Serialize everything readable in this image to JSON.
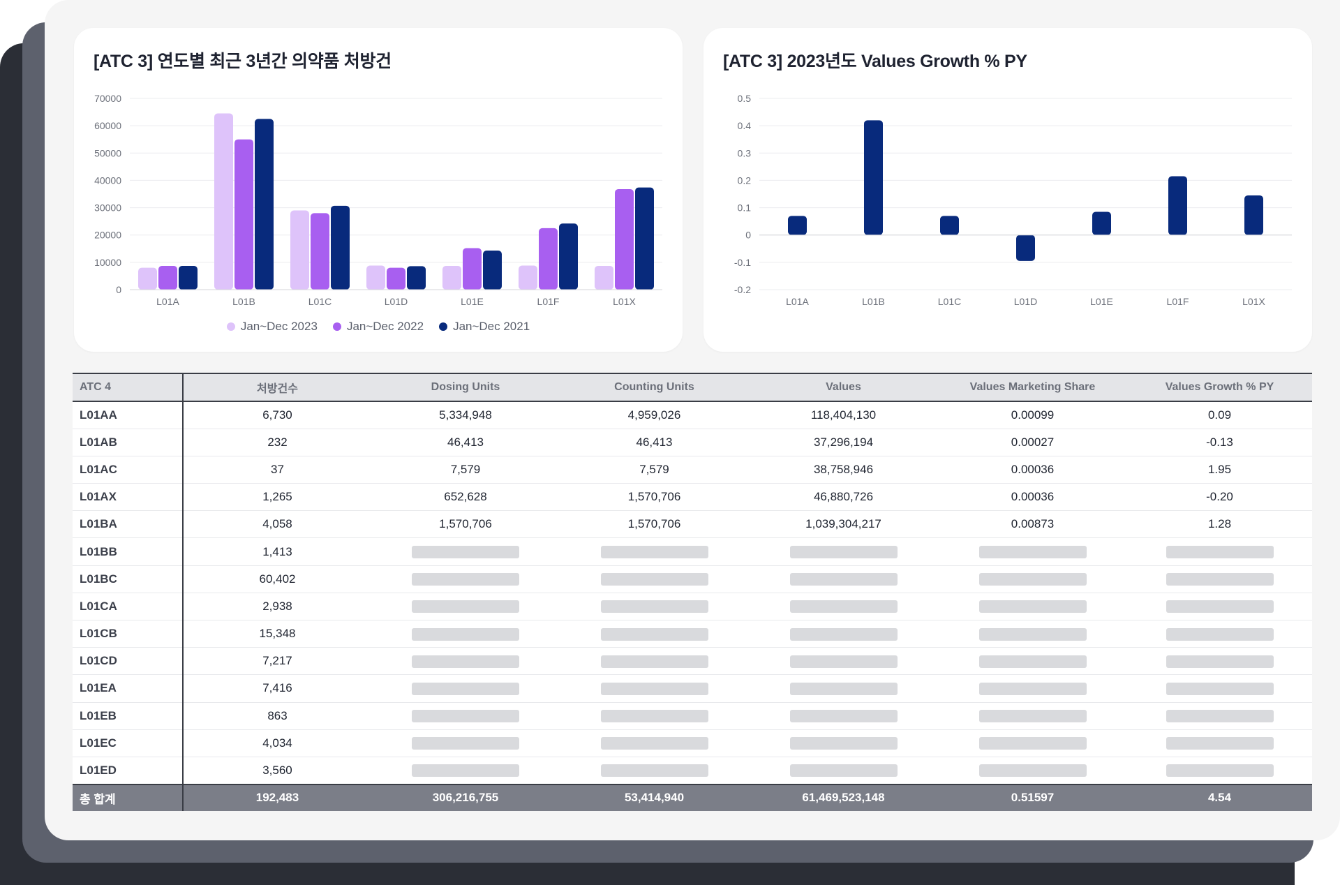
{
  "colors": {
    "series_2023": "#dec3fa",
    "series_2022": "#a85ff0",
    "series_2021": "#082a7c",
    "growth_bar": "#082a7c",
    "footer_bg": "#7b7e88",
    "skeleton": "#d9dadd"
  },
  "chart_data": [
    {
      "type": "bar",
      "title": "[ATC 3] 연도별 최근 3년간 의약품 처방건",
      "categories": [
        "L01A",
        "L01B",
        "L01C",
        "L01D",
        "L01E",
        "L01F",
        "L01X"
      ],
      "series": [
        {
          "name": "Jan~Dec 2023",
          "values": [
            8000,
            64500,
            29000,
            8800,
            8700,
            8800,
            8700
          ]
        },
        {
          "name": "Jan~Dec 2022",
          "values": [
            8700,
            55000,
            28000,
            8000,
            15200,
            22500,
            36800
          ]
        },
        {
          "name": "Jan~Dec 2021",
          "values": [
            8700,
            62500,
            30700,
            8600,
            14300,
            24200,
            37400
          ]
        }
      ],
      "ylim": [
        0,
        70000
      ],
      "yticks": [
        "0",
        "10000",
        "20000",
        "30000",
        "40000",
        "50000",
        "60000",
        "70000"
      ],
      "grid": true,
      "legend_position": "bottom-center"
    },
    {
      "type": "bar",
      "title": "[ATC 3] 2023년도 Values Growth % PY",
      "categories": [
        "L01A",
        "L01B",
        "L01C",
        "L01D",
        "L01E",
        "L01F",
        "L01X"
      ],
      "series": [
        {
          "values": [
            0.07,
            0.42,
            0.07,
            -0.095,
            0.085,
            0.215,
            0.145
          ]
        }
      ],
      "ylim": [
        -0.2,
        0.5
      ],
      "yticks": [
        "-0.2",
        "-0.1",
        "0",
        "0.1",
        "0.2",
        "0.3",
        "0.4",
        "0.5"
      ],
      "grid": true
    }
  ],
  "table": {
    "headers": [
      "ATC 4",
      "처방건수",
      "Dosing Units",
      "Counting Units",
      "Values",
      "Values Marketing Share",
      "Values Growth % PY"
    ],
    "rows": [
      {
        "code": "L01AA",
        "count": "6,730",
        "dosing": "5,334,948",
        "counting": "4,959,026",
        "values": "118,404,130",
        "share": "0.00099",
        "growth": "0.09"
      },
      {
        "code": "L01AB",
        "count": "232",
        "dosing": "46,413",
        "counting": "46,413",
        "values": "37,296,194",
        "share": "0.00027",
        "growth": "-0.13"
      },
      {
        "code": "L01AC",
        "count": "37",
        "dosing": "7,579",
        "counting": "7,579",
        "values": "38,758,946",
        "share": "0.00036",
        "growth": "1.95"
      },
      {
        "code": "L01AX",
        "count": "1,265",
        "dosing": "652,628",
        "counting": "1,570,706",
        "values": "46,880,726",
        "share": "0.00036",
        "growth": "-0.20"
      },
      {
        "code": "L01BA",
        "count": "4,058",
        "dosing": "1,570,706",
        "counting": "1,570,706",
        "values": "1,039,304,217",
        "share": "0.00873",
        "growth": "1.28"
      },
      {
        "code": "L01BB",
        "count": "1,413"
      },
      {
        "code": "L01BC",
        "count": "60,402"
      },
      {
        "code": "L01CA",
        "count": "2,938"
      },
      {
        "code": "L01CB",
        "count": "15,348"
      },
      {
        "code": "L01CD",
        "count": "7,217"
      },
      {
        "code": "L01EA",
        "count": "7,416"
      },
      {
        "code": "L01EB",
        "count": "863"
      },
      {
        "code": "L01EC",
        "count": "4,034"
      },
      {
        "code": "L01ED",
        "count": "3,560"
      }
    ],
    "footer": {
      "label": "총 합계",
      "count": "192,483",
      "dosing": "306,216,755",
      "counting": "53,414,940",
      "values": "61,469,523,148",
      "share": "0.51597",
      "growth": "4.54"
    }
  }
}
